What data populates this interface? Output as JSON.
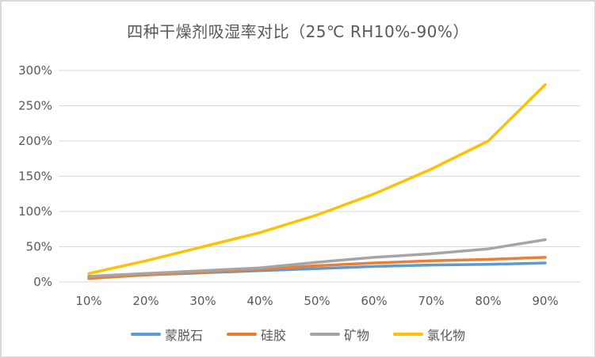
{
  "page": {
    "background": "#ffffff",
    "border_color": "#d9d9d9"
  },
  "chart_data": {
    "type": "line",
    "title": "四种干燥剂吸湿率对比（25℃ RH10%-90%）",
    "xlabel": "",
    "ylabel": "",
    "categories": [
      "10%",
      "20%",
      "30%",
      "40%",
      "50%",
      "60%",
      "70%",
      "80%",
      "90%"
    ],
    "series": [
      {
        "name": "蒙脱石",
        "color": "#5b9bd5",
        "values": [
          8,
          10,
          13,
          16,
          19,
          22,
          24,
          25,
          27
        ]
      },
      {
        "name": "硅胶",
        "color": "#ed7d31",
        "values": [
          5,
          10,
          14,
          18,
          23,
          27,
          30,
          32,
          35
        ]
      },
      {
        "name": "矿物",
        "color": "#a5a5a5",
        "values": [
          8,
          12,
          16,
          20,
          28,
          35,
          40,
          47,
          60
        ]
      },
      {
        "name": "氯化物",
        "color": "#ffc000",
        "values": [
          12,
          30,
          50,
          70,
          95,
          125,
          160,
          200,
          280
        ]
      }
    ],
    "y_ticks": [
      "0%",
      "50%",
      "100%",
      "150%",
      "200%",
      "250%",
      "300%"
    ],
    "ylim": [
      0,
      300
    ],
    "grid": true,
    "legend_position": "bottom",
    "text_color": "#595959",
    "grid_color": "#d9d9d9"
  }
}
